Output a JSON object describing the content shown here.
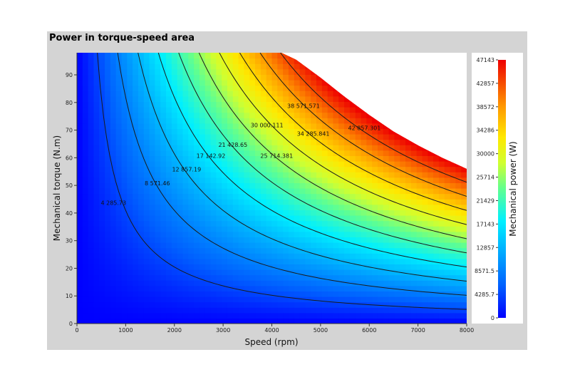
{
  "panel": {
    "title": "Power in torque-speed area"
  },
  "chart_data": {
    "type": "heatmap",
    "title": "Power in torque-speed area",
    "xlabel": "Speed (rpm)",
    "ylabel": "Mechanical torque (N.m)",
    "xlim": [
      0,
      8000
    ],
    "ylim": [
      0,
      98
    ],
    "x_ticks": [
      0,
      1000,
      2000,
      3000,
      4000,
      5000,
      6000,
      7000,
      8000
    ],
    "y_ticks": [
      0,
      10,
      20,
      30,
      40,
      50,
      60,
      70,
      80,
      90
    ],
    "boundary": [
      [
        0,
        98
      ],
      [
        4200,
        98
      ],
      [
        4500,
        95.5
      ],
      [
        5000,
        89
      ],
      [
        5500,
        82
      ],
      [
        6000,
        75.5
      ],
      [
        6500,
        69.5
      ],
      [
        7000,
        64.5
      ],
      [
        7500,
        60
      ],
      [
        8000,
        56
      ]
    ],
    "contour_levels": [
      4285.73,
      8571.46,
      12857.19,
      17142.92,
      21428.65,
      25714.381,
      30000.111,
      34285.841,
      38571.571,
      42857.301
    ],
    "contour_labels": [
      {
        "text": "4 285.73",
        "x": 750,
        "y": 43
      },
      {
        "text": "8 571.46",
        "x": 1650,
        "y": 50
      },
      {
        "text": "12 857.19",
        "x": 2250,
        "y": 55
      },
      {
        "text": "17 142.92",
        "x": 2750,
        "y": 60
      },
      {
        "text": "21 428.65",
        "x": 3200,
        "y": 64
      },
      {
        "text": "25 714.381",
        "x": 4100,
        "y": 60
      },
      {
        "text": "30 000.111",
        "x": 3900,
        "y": 71
      },
      {
        "text": "34 285.841",
        "x": 4850,
        "y": 68
      },
      {
        "text": "38 571.571",
        "x": 4650,
        "y": 78
      },
      {
        "text": "42 857.301",
        "x": 5900,
        "y": 70
      }
    ],
    "colorbar": {
      "label": "Mechanical power (W)",
      "min": 0,
      "max": 47143,
      "ticks": [
        "47143",
        "42857",
        "38572",
        "34286",
        "30000",
        "25714",
        "21429",
        "17143",
        "12857",
        "8571.5",
        "4285.7",
        "0"
      ]
    },
    "grid": false
  }
}
